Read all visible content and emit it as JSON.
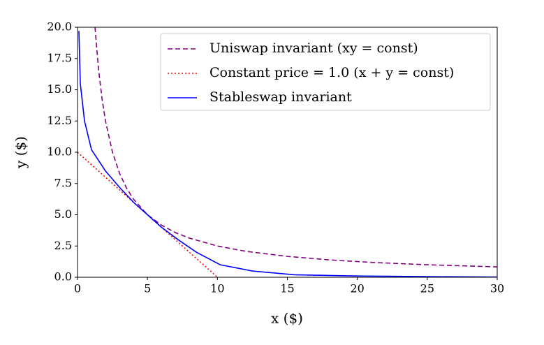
{
  "chart_data": {
    "type": "line",
    "xlabel": "x ($)",
    "ylabel": "y ($)",
    "xlim": [
      0,
      30
    ],
    "ylim": [
      0,
      20
    ],
    "xticks": [
      0,
      5,
      10,
      15,
      20,
      25,
      30
    ],
    "yticks": [
      {
        "value": 0,
        "label": "0.0"
      },
      2.5,
      {
        "value": 5,
        "label": "5.0"
      },
      7.5,
      {
        "value": 10,
        "label": "10.0"
      },
      12.5,
      {
        "value": 15,
        "label": "15.0"
      },
      17.5,
      {
        "value": 20,
        "label": "20.0"
      }
    ],
    "grid": false,
    "legend": "upper right",
    "series": [
      {
        "name": "Uniswap invariant (xy = const)",
        "color": "#800080",
        "dash": "dashed",
        "x": [
          1.25,
          1.5,
          1.75,
          2,
          2.5,
          3,
          3.5,
          4,
          5,
          6,
          7,
          8,
          10,
          12,
          15,
          18,
          21,
          25,
          30
        ],
        "values": [
          20,
          16.67,
          14.29,
          12.5,
          10,
          8.33,
          7.14,
          6.25,
          5,
          4.17,
          3.57,
          3.13,
          2.5,
          2.08,
          1.67,
          1.39,
          1.19,
          1,
          0.83
        ]
      },
      {
        "name": "Constant price = 1.0 (x + y = const)",
        "color": "#ff0000",
        "dash": "dotted",
        "x": [
          0,
          10
        ],
        "values": [
          10,
          0
        ]
      },
      {
        "name": "Stableswap invariant",
        "color": "#0000ff",
        "dash": "solid",
        "x": [
          0.1,
          0.2,
          0.5,
          1,
          2,
          3,
          4,
          5,
          6,
          7.2,
          8.5,
          10.2,
          12.5,
          15.5,
          20,
          25,
          30
        ],
        "values": [
          19.7,
          15.5,
          12.5,
          10.2,
          8.5,
          7.2,
          6,
          5,
          4,
          3,
          2,
          1,
          0.5,
          0.2,
          0.1,
          0.05,
          0.02
        ]
      }
    ]
  }
}
